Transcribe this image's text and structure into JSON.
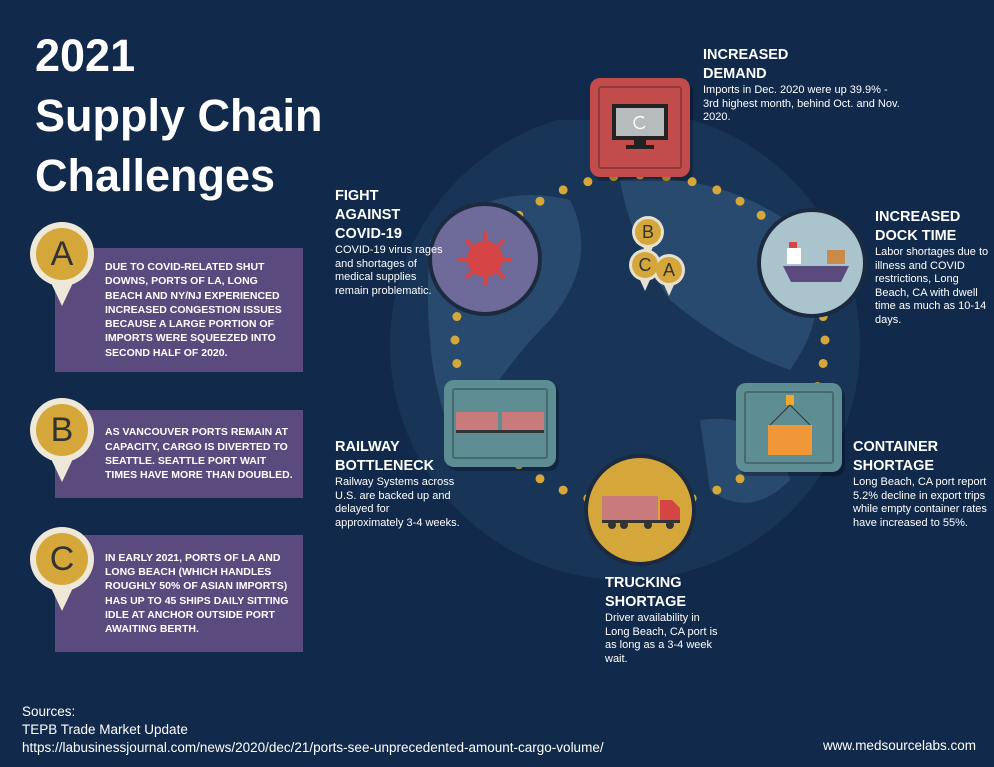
{
  "title": "2021\nSupply Chain\nChallenges",
  "callouts": [
    {
      "letter": "A",
      "text": "Due to COVID-related shut downs, ports of LA, Long Beach and NY/NJ experienced increased congestion issues because a large portion of imports were squeezed into second half of 2020."
    },
    {
      "letter": "B",
      "text": "As Vancouver ports remain at capacity, cargo is diverted to Seattle. Seattle port wait times have more than doubled."
    },
    {
      "letter": "C",
      "text": "In early 2021, ports of LA and Long Beach (which handles roughly 50% of Asian imports) has up to 45 ships daily sitting idle at anchor outside port awaiting berth."
    }
  ],
  "map_pins": [
    "B",
    "C",
    "A"
  ],
  "challenges": {
    "demand": {
      "title1": "INCREASED",
      "title2": "DEMAND",
      "body": "Imports in Dec. 2020 were up 39.9% - 3rd highest month, behind Oct. and Nov. 2020.",
      "icon": "computer-monitor-icon",
      "color": "#c24b4b"
    },
    "covid": {
      "title1": "FIGHT",
      "title2": "AGAINST",
      "title3": "COVID-19",
      "body": "COVID-19 virus rages and shortages of medical supplies remain problematic.",
      "icon": "virus-icon",
      "color": "#6e6a9a"
    },
    "dock": {
      "title1": "INCREASED",
      "title2": "DOCK TIME",
      "body": "Labor shortages due to illness and COVID restrictions, Long Beach, CA with dwell time as much as 10-14 days.",
      "icon": "cargo-ship-icon",
      "color": "#a9c4cc"
    },
    "railway": {
      "title1": "RAILWAY",
      "title2": "BOTTLENECK",
      "body": "Railway Systems across U.S. are backed up and delayed for approximately 3-4 weeks.",
      "icon": "railway-cars-icon",
      "color": "#5e8e94"
    },
    "container": {
      "title1": "CONTAINER",
      "title2": "SHORTAGE",
      "body": "Long Beach, CA port report 5.2% decline in export trips while empty container rates have increased to 55%.",
      "icon": "container-crane-icon",
      "color": "#5e8e94"
    },
    "trucking": {
      "title1": "TRUCKING",
      "title2": "SHORTAGE",
      "body": "Driver availability in Long Beach, CA port is as long as a 3-4 week wait.",
      "icon": "truck-icon",
      "color": "#d5a73a"
    }
  },
  "sources": {
    "label": "Sources:",
    "line1": "TEPB Trade Market Update",
    "line2": "https://labusinessjournal.com/news/2020/dec/21/ports-see-unprecedented-amount-cargo-volume/"
  },
  "website": "www.medsourcelabs.com",
  "colors": {
    "background": "#11294a",
    "accent": "#d5a73a",
    "callout": "#5a4a7e"
  }
}
